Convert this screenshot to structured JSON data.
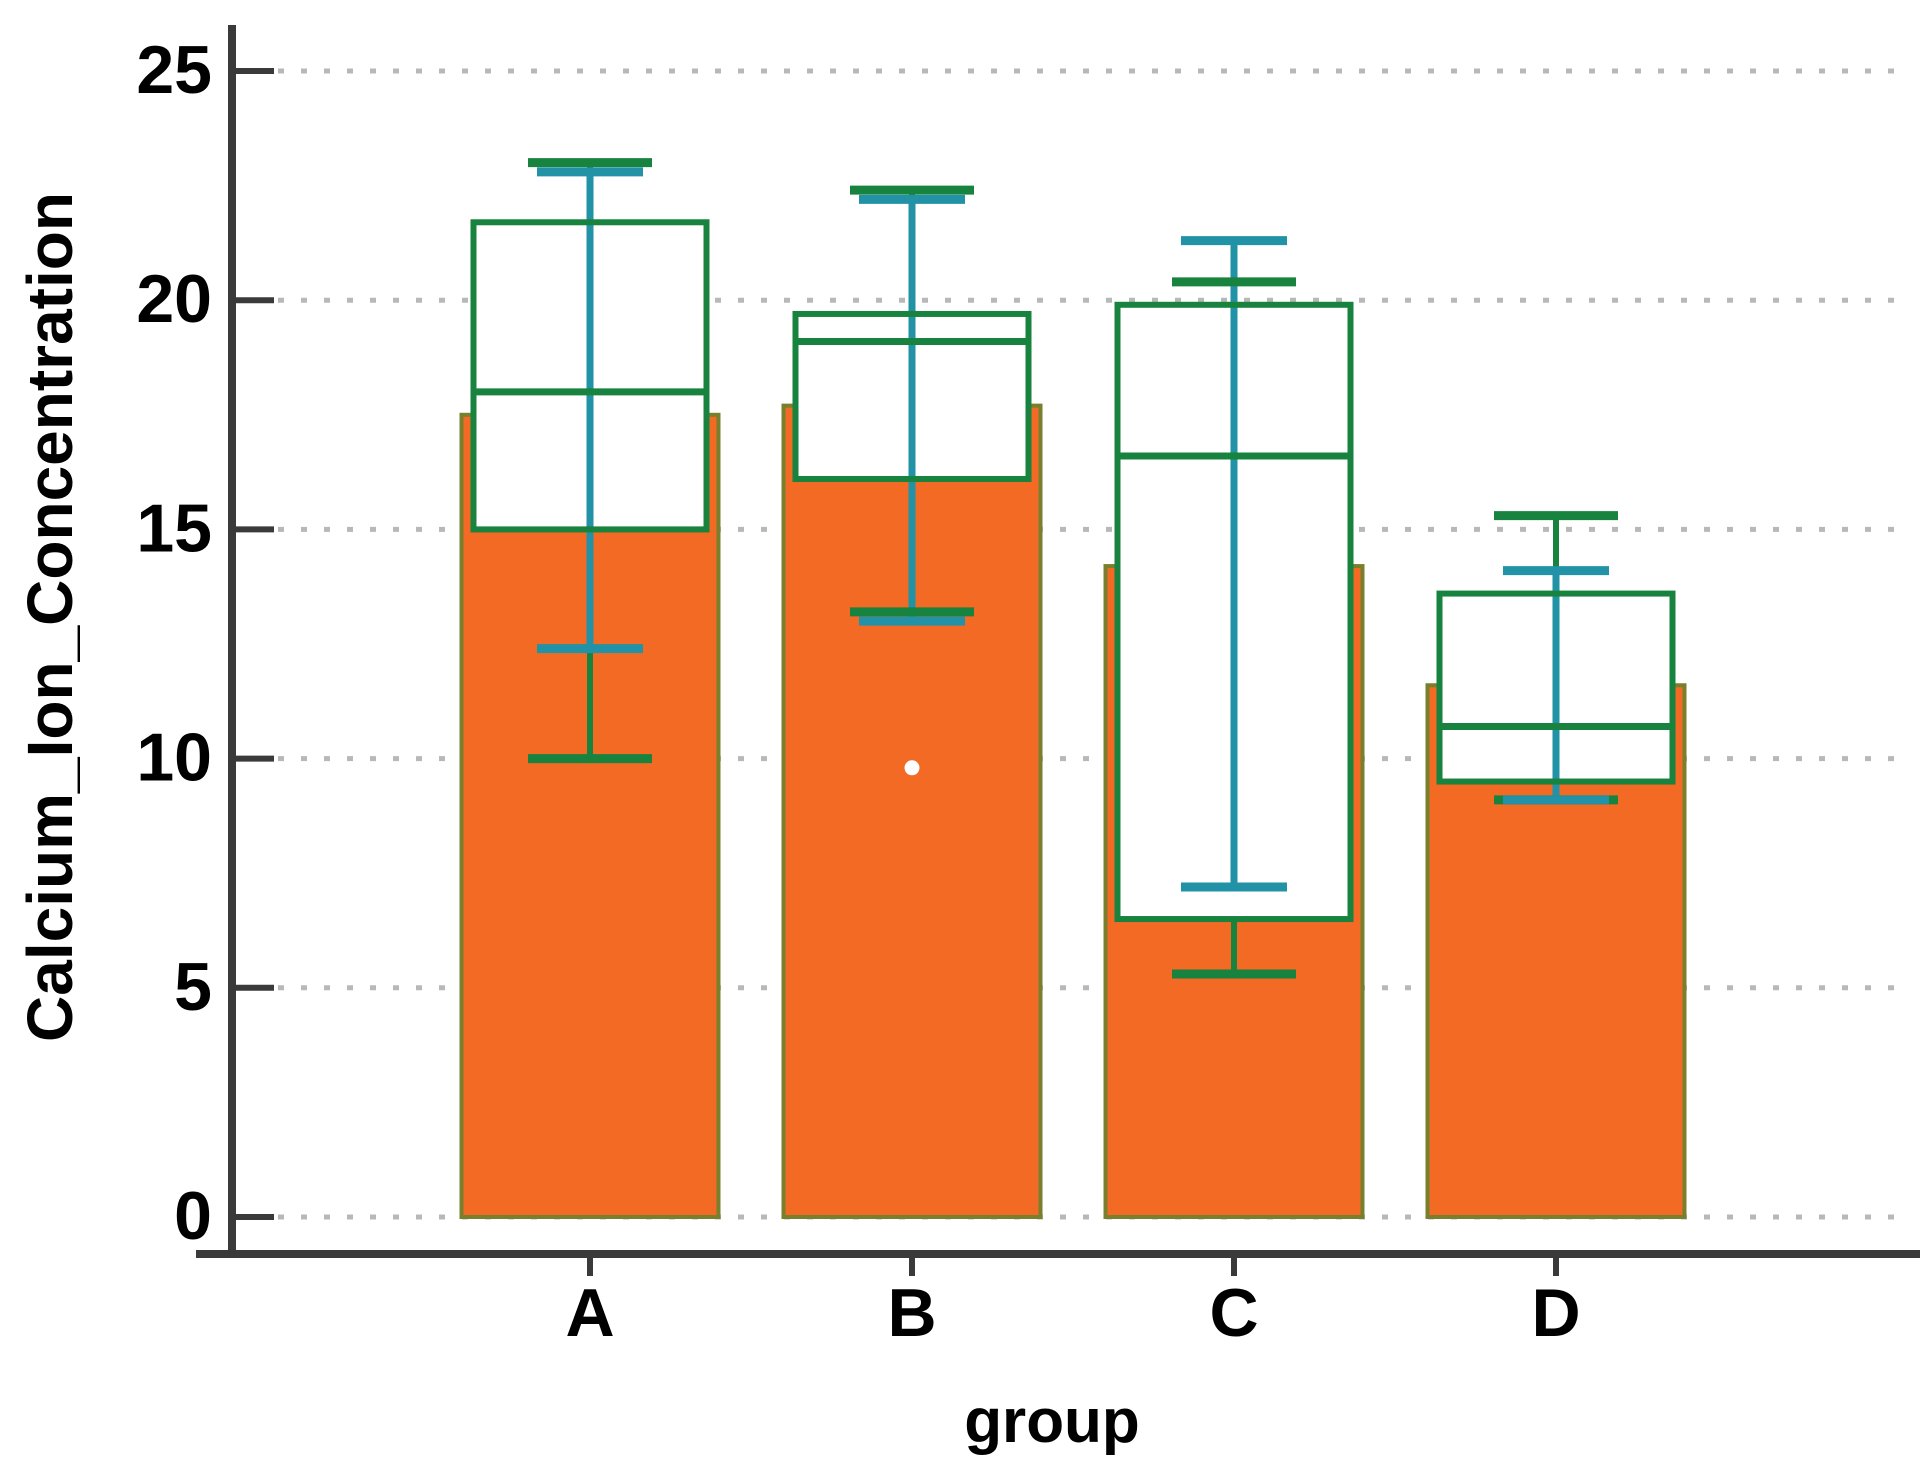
{
  "figure": {
    "background": "#FFFFFF",
    "y_axis": {
      "title": "Calcium_Ion_Concentration",
      "tick_labels": [
        "0",
        "5",
        "10",
        "15",
        "20",
        "25"
      ],
      "range_min": 0,
      "range_max": 25
    },
    "x_axis": {
      "title": "group",
      "tick_labels": [
        "A",
        "B",
        "C",
        "D"
      ]
    }
  },
  "chart_data": {
    "type": "bar",
    "subtype": "bar-with-boxplot-and-errorbar-overlay",
    "title": "",
    "xlabel": "group",
    "ylabel": "Calcium_Ion_Concentration",
    "categories": [
      "A",
      "B",
      "C",
      "D"
    ],
    "ylim": [
      0,
      25
    ],
    "yticks": [
      0,
      5,
      10,
      15,
      20,
      25
    ],
    "grid": {
      "horizontal": true,
      "style": "dotted"
    },
    "legend": "none",
    "series": [
      {
        "name": "bar_mean",
        "values": [
          17.5,
          17.7,
          14.2,
          11.6
        ]
      },
      {
        "name": "errorbar_low",
        "values": [
          12.4,
          13.0,
          7.2,
          9.1
        ]
      },
      {
        "name": "errorbar_high",
        "values": [
          22.8,
          22.2,
          21.3,
          14.1
        ]
      },
      {
        "name": "box_q1",
        "values": [
          15.0,
          16.1,
          6.5,
          9.5
        ]
      },
      {
        "name": "box_median",
        "values": [
          18.0,
          19.1,
          16.6,
          10.7
        ]
      },
      {
        "name": "box_q3",
        "values": [
          21.7,
          19.7,
          19.9,
          13.6
        ]
      },
      {
        "name": "whisker_low",
        "values": [
          10.0,
          13.2,
          5.3,
          9.1
        ]
      },
      {
        "name": "whisker_high",
        "values": [
          23.0,
          22.4,
          20.4,
          15.3
        ]
      },
      {
        "name": "outliers",
        "values": [
          [],
          [
            9.8
          ],
          [],
          []
        ]
      }
    ],
    "colors": {
      "bar_fill": "#F26A24",
      "bar_edge": "#78802D",
      "box_edge": "#17833E",
      "box_fill": "#FFFFFF",
      "errorbar": "#2292A6",
      "outlier_fill": "#FFFFFF",
      "gridline": "#B8B8B8",
      "axis": "#3A3A3A",
      "text": "#000000"
    }
  }
}
